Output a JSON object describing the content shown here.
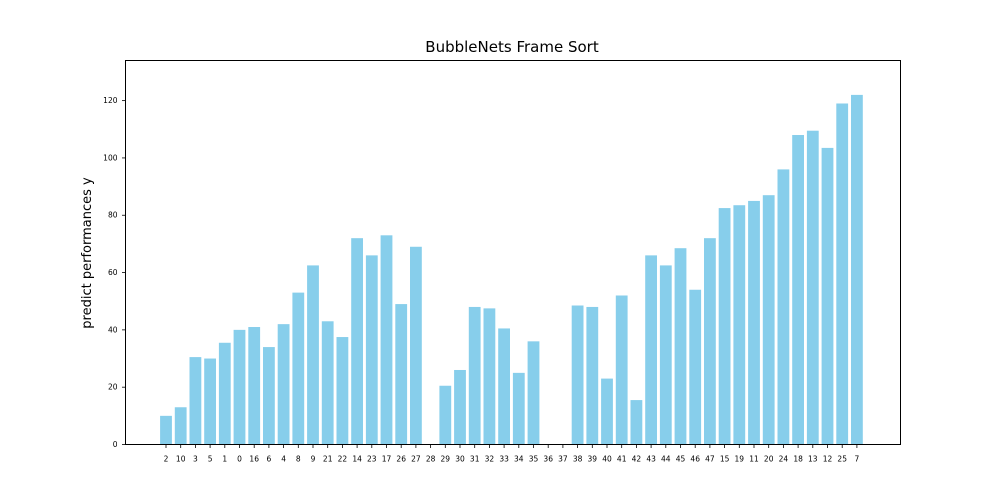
{
  "chart_data": {
    "type": "bar",
    "title": "BubbleNets Frame Sort",
    "xlabel": "",
    "ylabel": "predict performances y",
    "ylim": [
      0,
      134
    ],
    "yticks": [
      0,
      20,
      40,
      60,
      80,
      100,
      120
    ],
    "grid": false,
    "bar_color": "#87ceeb",
    "categories": [
      "2",
      "10",
      "3",
      "5",
      "1",
      "0",
      "16",
      "6",
      "4",
      "8",
      "9",
      "21",
      "22",
      "14",
      "23",
      "17",
      "26",
      "27",
      "28",
      "29",
      "30",
      "31",
      "32",
      "33",
      "34",
      "35",
      "36",
      "37",
      "38",
      "39",
      "40",
      "41",
      "42",
      "43",
      "44",
      "45",
      "46",
      "47",
      "15",
      "19",
      "11",
      "20",
      "24",
      "18",
      "13",
      "12",
      "25",
      "7"
    ],
    "values": [
      10,
      13,
      30.5,
      30,
      35.5,
      40,
      41,
      34,
      42,
      53,
      62.5,
      43,
      37.5,
      72,
      66,
      73,
      49,
      69,
      0,
      20.5,
      26,
      48,
      47.5,
      40.5,
      25,
      36,
      0,
      0,
      48.5,
      48,
      23,
      52,
      15.5,
      66,
      62.5,
      68.5,
      54,
      72,
      82.5,
      83.5,
      85,
      87,
      96,
      108,
      109.5,
      103.5,
      119,
      122
    ]
  }
}
